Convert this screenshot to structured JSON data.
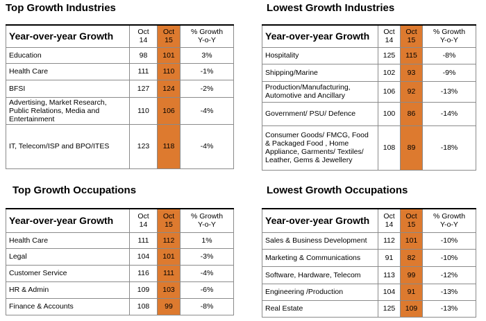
{
  "top_industries": {
    "title": "Top Growth Industries",
    "header": {
      "label": "Year-over-year Growth",
      "oct14": "Oct\n14",
      "oct15": "Oct\n15",
      "growth": "% Growth\nY-o-Y"
    },
    "rows": [
      {
        "label": "Education",
        "oct14": "98",
        "oct15": "101",
        "growth": "3%"
      },
      {
        "label": "Health Care",
        "oct14": "111",
        "oct15": "110",
        "growth": "-1%"
      },
      {
        "label": "BFSI",
        "oct14": "127",
        "oct15": "124",
        "growth": "-2%"
      },
      {
        "label": "Advertising, Market Research, Public Relations, Media and Entertainment",
        "oct14": "110",
        "oct15": "106",
        "growth": "-4%"
      },
      {
        "label": "IT, Telecom/ISP and BPO/ITES",
        "oct14": "123",
        "oct15": "118",
        "growth": "-4%"
      }
    ]
  },
  "lowest_industries": {
    "title": "Lowest Growth Industries",
    "header": {
      "label": "Year-over-year Growth",
      "oct14": "Oct\n14",
      "oct15": "Oct\n15",
      "growth": "% Growth\nY-o-Y"
    },
    "rows": [
      {
        "label": "Hospitality",
        "oct14": "125",
        "oct15": "115",
        "growth": "-8%"
      },
      {
        "label": "Shipping/Marine",
        "oct14": "102",
        "oct15": "93",
        "growth": "-9%"
      },
      {
        "label": "Production/Manufacturing, Automotive and Ancillary",
        "oct14": "106",
        "oct15": "92",
        "growth": "-13%"
      },
      {
        "label": "Government/ PSU/ Defence",
        "oct14": "100",
        "oct15": "86",
        "growth": "-14%"
      },
      {
        "label": "Consumer Goods/ FMCG, Food & Packaged Food , Home Appliance, Garments/ Textiles/ Leather, Gems & Jewellery",
        "oct14": "108",
        "oct15": "89",
        "growth": "-18%"
      }
    ]
  },
  "top_occupations": {
    "title": "Top Growth Occupations",
    "header": {
      "label": "Year-over-year Growth",
      "oct14": "Oct\n14",
      "oct15": "Oct\n15",
      "growth": "% Growth\nY-o-Y"
    },
    "rows": [
      {
        "label": "Health Care",
        "oct14": "111",
        "oct15": "112",
        "growth": "1%"
      },
      {
        "label": "Legal",
        "oct14": "104",
        "oct15": "101",
        "growth": "-3%"
      },
      {
        "label": "Customer Service",
        "oct14": "116",
        "oct15": "111",
        "growth": "-4%"
      },
      {
        "label": "HR & Admin",
        "oct14": "109",
        "oct15": "103",
        "growth": "-6%"
      },
      {
        "label": "Finance & Accounts",
        "oct14": "108",
        "oct15": "99",
        "growth": "-8%"
      }
    ]
  },
  "lowest_occupations": {
    "title": "Lowest Growth Occupations",
    "header": {
      "label": "Year-over-year Growth",
      "oct14": "Oct\n14",
      "oct15": "Oct\n15",
      "growth": "% Growth\nY-o-Y"
    },
    "rows": [
      {
        "label": "Sales & Business Development",
        "oct14": "112",
        "oct15": "101",
        "growth": "-10%"
      },
      {
        "label": "Marketing & Communications",
        "oct14": "91",
        "oct15": "82",
        "growth": "-10%"
      },
      {
        "label": "Software, Hardware, Telecom",
        "oct14": "113",
        "oct15": "99",
        "growth": "-12%"
      },
      {
        "label": "Engineering /Production",
        "oct14": "104",
        "oct15": "91",
        "growth": "-13%"
      },
      {
        "label": "Real Estate",
        "oct14": "125",
        "oct15": "109",
        "growth": "-13%"
      }
    ]
  }
}
